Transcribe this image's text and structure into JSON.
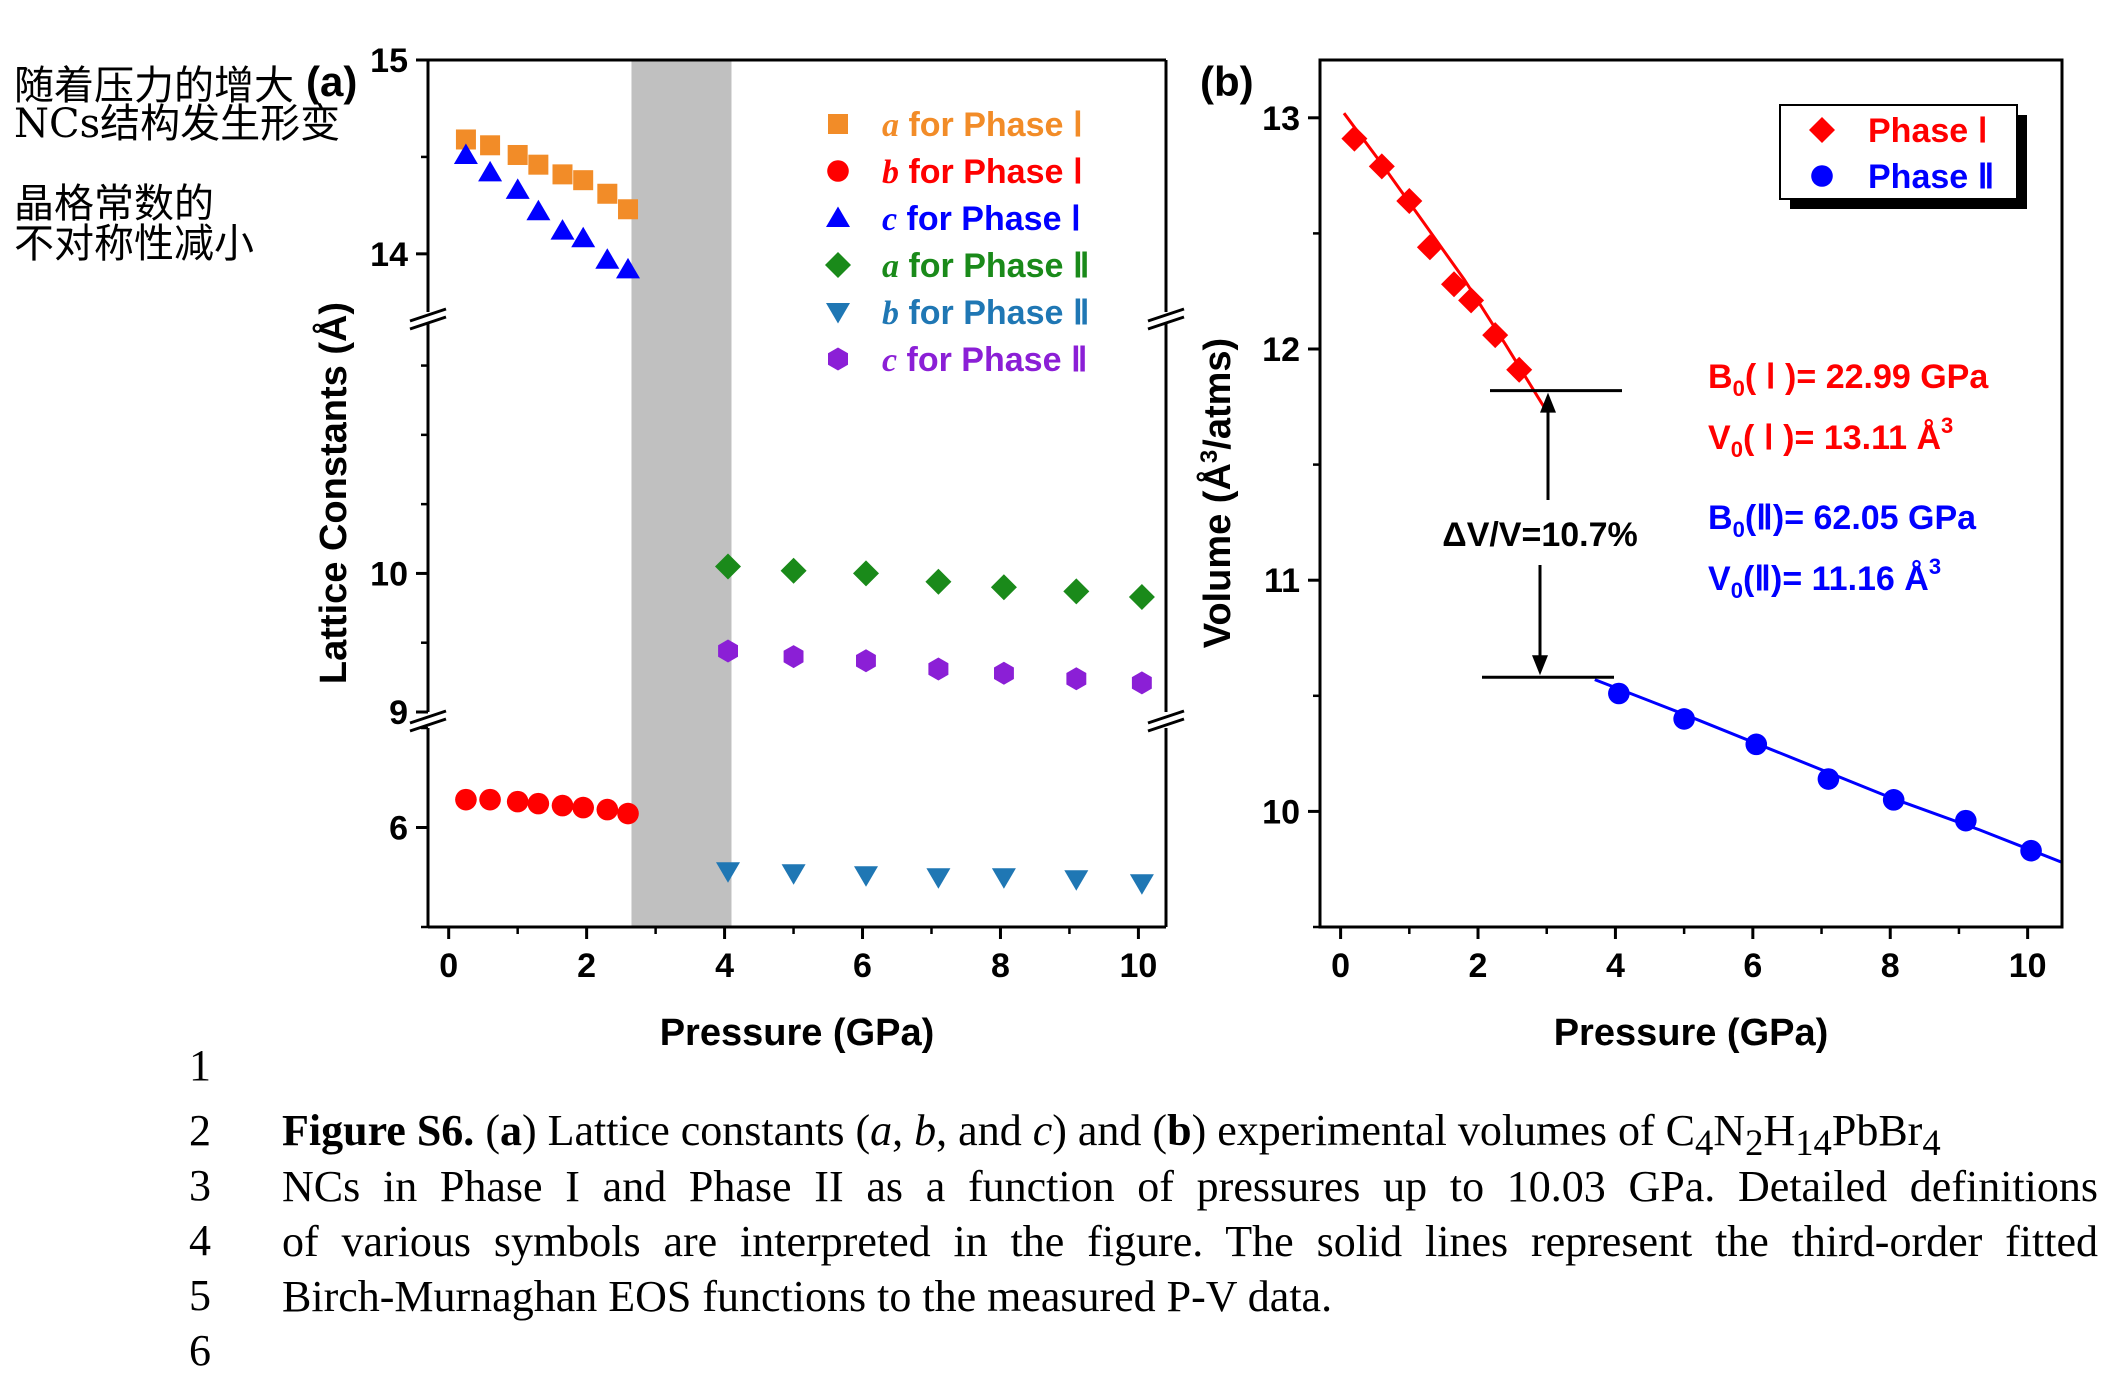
{
  "notes": [
    "随着压力的增大",
    "NCs结构发生形变",
    "晶格常数的",
    "不对称性减小"
  ],
  "line_numbers": [
    "1",
    "2",
    "3",
    "4",
    "5",
    "6"
  ],
  "caption": {
    "label": "Figure S6.",
    "line1_parts": [
      "(",
      "a",
      ") Lattice constants (",
      "a",
      ", ",
      "b",
      ", and ",
      "c",
      ") and (",
      "b",
      ") experimental volumes of C",
      "4",
      "N",
      "2",
      "H",
      "14",
      "PbBr",
      "4"
    ],
    "line2": "NCs in Phase I and Phase II as a function of pressures up to 10.03 GPa. Detailed definitions",
    "line3": "of various symbols are interpreted in the figure. The solid lines represent the third-order fitted",
    "line4": "Birch-Murnaghan EOS functions to the measured P-V data."
  },
  "chart_data": [
    {
      "panel_label": "(a)",
      "type": "scatter",
      "xlabel": "Pressure (GPa)",
      "ylabel": "Lattice Constants (Å)",
      "xlim": [
        -0.3,
        10.4
      ],
      "x_ticks": [
        "0",
        "2",
        "4",
        "6",
        "8",
        "10"
      ],
      "broken_y_axis": true,
      "y_segments": [
        {
          "range": [
            5.5,
            6.5
          ],
          "ticks": [
            "6"
          ]
        },
        {
          "range": [
            9.0,
            11.8
          ],
          "ticks": [
            "9",
            "10"
          ]
        },
        {
          "range": [
            13.7,
            15.0
          ],
          "ticks": [
            "14",
            "15"
          ]
        }
      ],
      "shaded_x_range": [
        2.65,
        4.1
      ],
      "legend_position": "top-right",
      "series": [
        {
          "name": "a for Phase Ⅰ",
          "legend_var": "a",
          "legend_rest": " for Phase Ⅰ",
          "color": "#f28c28",
          "marker": "square",
          "x": [
            0.25,
            0.6,
            1.0,
            1.3,
            1.65,
            1.95,
            2.3,
            2.6
          ],
          "y": [
            14.59,
            14.56,
            14.51,
            14.46,
            14.41,
            14.38,
            14.31,
            14.23
          ]
        },
        {
          "name": "b for Phase Ⅰ",
          "legend_var": "b",
          "legend_rest": " for Phase Ⅰ",
          "color": "#ff0000",
          "marker": "circle",
          "x": [
            0.25,
            0.6,
            1.0,
            1.3,
            1.65,
            1.95,
            2.3,
            2.6
          ],
          "y": [
            6.14,
            6.14,
            6.13,
            6.12,
            6.11,
            6.1,
            6.09,
            6.07
          ]
        },
        {
          "name": "c for Phase Ⅰ",
          "legend_var": "c",
          "legend_rest": " for Phase Ⅰ",
          "color": "#0000ff",
          "marker": "triangle-up",
          "x": [
            0.25,
            0.6,
            1.0,
            1.3,
            1.65,
            1.95,
            2.3,
            2.6
          ],
          "y": [
            14.51,
            14.42,
            14.33,
            14.22,
            14.12,
            14.08,
            13.97,
            13.92
          ]
        },
        {
          "name": "a for Phase Ⅱ",
          "legend_var": "a",
          "legend_rest": " for Phase Ⅱ",
          "color": "#1a8a1a",
          "marker": "diamond",
          "x": [
            4.05,
            5.0,
            6.05,
            7.1,
            8.05,
            9.1,
            10.05
          ],
          "y": [
            10.05,
            10.02,
            10.0,
            9.94,
            9.9,
            9.87,
            9.83
          ]
        },
        {
          "name": "b for Phase Ⅱ",
          "legend_var": "b",
          "legend_rest": " for Phase Ⅱ",
          "color": "#1f77b4",
          "marker": "triangle-down",
          "x": [
            4.05,
            5.0,
            6.05,
            7.1,
            8.05,
            9.1,
            10.05
          ],
          "y": [
            5.78,
            5.77,
            5.76,
            5.75,
            5.75,
            5.74,
            5.72
          ]
        },
        {
          "name": "c for Phase Ⅱ",
          "legend_var": "c",
          "legend_rest": " for Phase Ⅱ",
          "color": "#8b1fd6",
          "marker": "hexagon",
          "x": [
            4.05,
            5.0,
            6.05,
            7.1,
            8.05,
            9.1,
            10.05
          ],
          "y": [
            9.44,
            9.4,
            9.37,
            9.31,
            9.28,
            9.24,
            9.21
          ]
        }
      ]
    },
    {
      "panel_label": "(b)",
      "type": "scatter",
      "xlabel": "Pressure (GPa)",
      "ylabel_main": "Volume (Å",
      "ylabel_sup": "3",
      "ylabel_end": "/atms)",
      "xlim": [
        -0.3,
        10.5
      ],
      "ylim": [
        9.5,
        13.25
      ],
      "x_ticks": [
        "0",
        "2",
        "4",
        "6",
        "8",
        "10"
      ],
      "y_ticks": [
        "10",
        "11",
        "12",
        "13"
      ],
      "legend_position": "top-right",
      "series": [
        {
          "name": "Phase Ⅰ",
          "color": "#ff0000",
          "marker": "diamond",
          "x": [
            0.2,
            0.6,
            1.0,
            1.3,
            1.65,
            1.9,
            2.25,
            2.6
          ],
          "y": [
            12.91,
            12.79,
            12.64,
            12.44,
            12.28,
            12.21,
            12.06,
            11.91
          ]
        },
        {
          "name": "Phase Ⅱ",
          "color": "#0000ff",
          "marker": "circle",
          "x": [
            4.05,
            5.0,
            6.05,
            7.1,
            8.05,
            9.1,
            10.05
          ],
          "y": [
            10.51,
            10.4,
            10.29,
            10.14,
            10.05,
            9.96,
            9.83
          ]
        }
      ],
      "fits": [
        {
          "series": "Phase Ⅰ",
          "color": "#ff0000",
          "x": [
            0.05,
            0.6,
            1.2,
            1.8,
            2.4,
            3.0
          ],
          "y": [
            13.02,
            12.8,
            12.55,
            12.3,
            12.02,
            11.73
          ]
        },
        {
          "series": "Phase Ⅱ",
          "color": "#0000ff",
          "x": [
            3.7,
            5.0,
            6.5,
            8.0,
            9.3,
            10.5
          ],
          "y": [
            10.57,
            10.42,
            10.24,
            10.06,
            9.92,
            9.78
          ]
        }
      ],
      "annotation": {
        "text": "ΔV/V=10.7%",
        "upper_y": 11.82,
        "lower_y": 10.58
      },
      "params": {
        "phase1": {
          "color": "#ff0000",
          "B_label": "B",
          "B_sub": "0",
          "B_mid": "( Ⅰ )= ",
          "B_value": "22.99 GPa",
          "V_label": "V",
          "V_sub": "0",
          "V_mid": "( Ⅰ )= ",
          "V_value": "13.11 Å",
          "V_sup": "3"
        },
        "phase2": {
          "color": "#0000ff",
          "B_label": "B",
          "B_sub": "0",
          "B_mid": "(Ⅱ)= ",
          "B_value": "62.05 GPa",
          "V_label": "V",
          "V_sub": "0",
          "V_mid": "(Ⅱ)= ",
          "V_value": "11.16 Å",
          "V_sup": "3"
        }
      }
    }
  ]
}
